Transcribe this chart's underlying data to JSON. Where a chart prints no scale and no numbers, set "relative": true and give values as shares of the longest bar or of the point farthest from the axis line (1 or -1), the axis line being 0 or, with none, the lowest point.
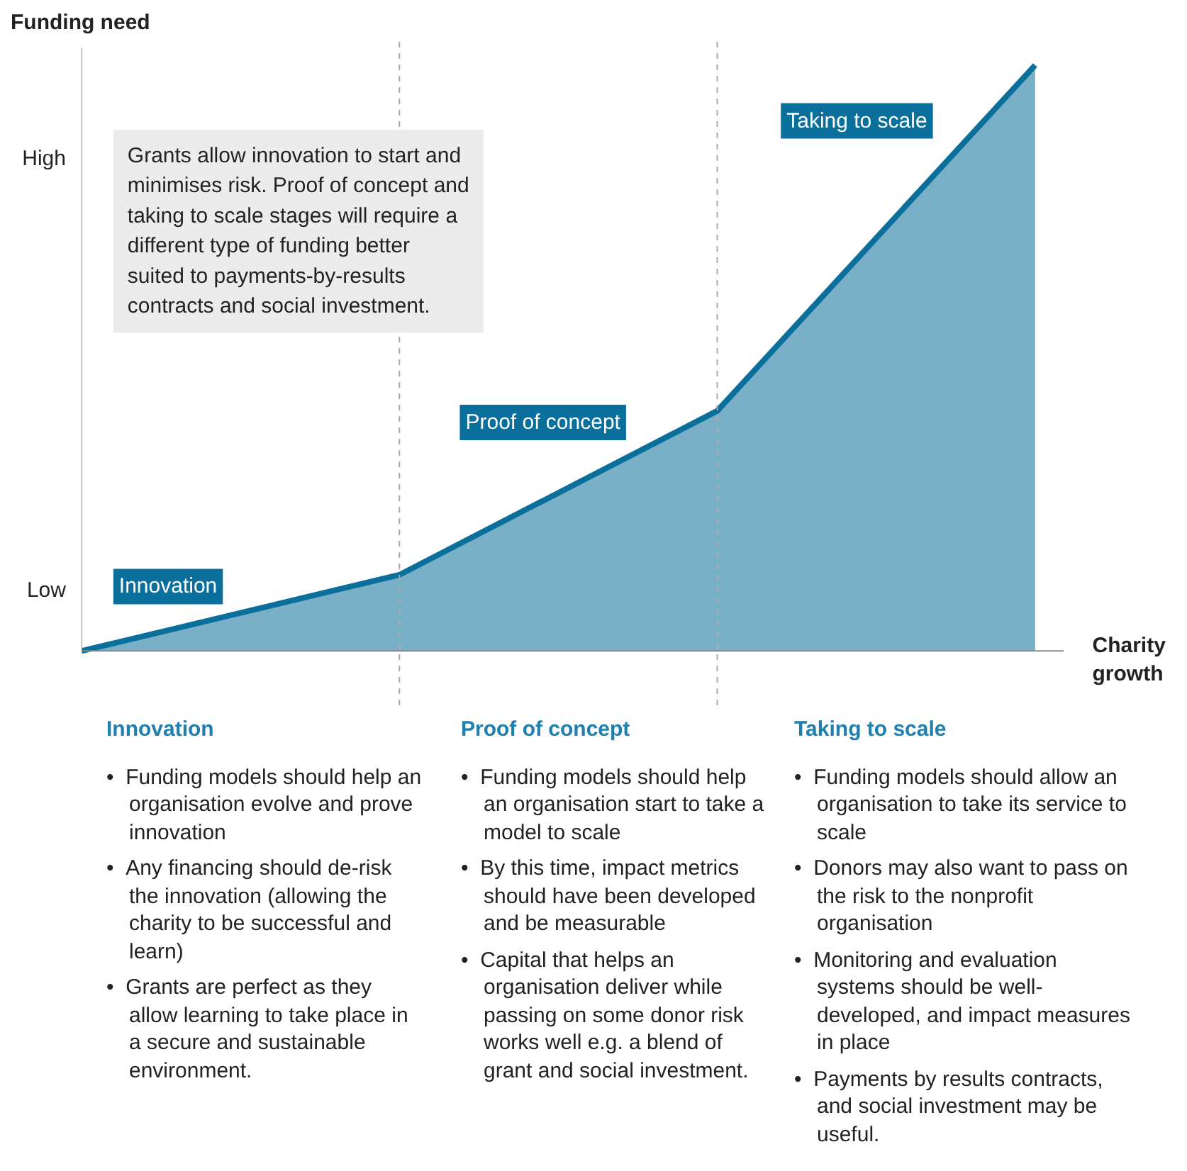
{
  "chart_data": {
    "type": "area",
    "ylabel": "Funding need",
    "xlabel": "Charity growth",
    "categories": [
      null,
      null,
      null,
      null
    ],
    "relative": true,
    "values": [
      0,
      0.13,
      0.41,
      1
    ],
    "color": "#0b6f9b",
    "annotations": [
      "High",
      "Low",
      "Grants allow innovation to start and\nminimises risk. Proof of concept and\ntaking to scale stages will require a\ndifferent type of funding better\nsuited to  payments-by-results\ncontracts and social investment.",
      "Innovation",
      "Proof of concept",
      "Taking to scale",
      "Innovation\n• Funding models should help an organisation evolve and prove innovation\n• Any financing should de-risk the innovation (allowing the charity to be successful and learn)\n• Grants are perfect as they allow learning to take place in a secure and sustainable environment.",
      "Proof of concept\n• Funding models should help an organisation start to take a model to scale\n• By this time, impact metrics should have been developed and be measurable\n• Capital that helps an organisation deliver while passing on some donor risk works well e.g. a blend of grant and social investment.",
      "Taking to scale\n• Funding models should allow an organisation to take its service to scale\n• Donors may also want to pass on the risk to the nonprofit organisation\n• Monitoring and evaluation systems should be well-developed, and impact measures in place\n• Payments by results contracts, and social investment may be useful."
    ]
  }
}
